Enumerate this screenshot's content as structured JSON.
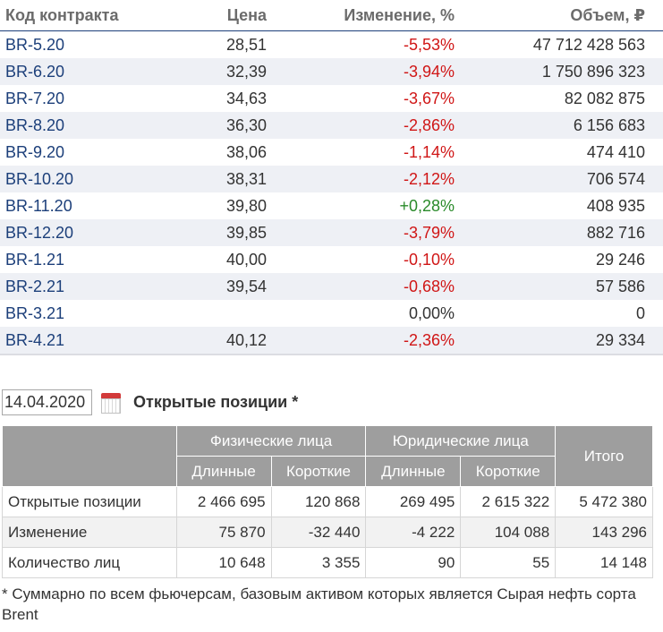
{
  "contracts": {
    "headers": {
      "code": "Код контракта",
      "price": "Цена",
      "change": "Изменение, %",
      "volume": "Объем, ₽"
    },
    "rows": [
      {
        "code": "BR-5.20",
        "price": "28,51",
        "change": "-5,53%",
        "volume": "47 712 428 563"
      },
      {
        "code": "BR-6.20",
        "price": "32,39",
        "change": "-3,94%",
        "volume": "1 750 896 323"
      },
      {
        "code": "BR-7.20",
        "price": "34,63",
        "change": "-3,67%",
        "volume": "82 082 875"
      },
      {
        "code": "BR-8.20",
        "price": "36,30",
        "change": "-2,86%",
        "volume": "6 156 683"
      },
      {
        "code": "BR-9.20",
        "price": "38,06",
        "change": "-1,14%",
        "volume": "474 410"
      },
      {
        "code": "BR-10.20",
        "price": "38,31",
        "change": "-2,12%",
        "volume": "706 574"
      },
      {
        "code": "BR-11.20",
        "price": "39,80",
        "change": "+0,28%",
        "volume": "408 935"
      },
      {
        "code": "BR-12.20",
        "price": "39,85",
        "change": "-3,79%",
        "volume": "882 716"
      },
      {
        "code": "BR-1.21",
        "price": "40,00",
        "change": "-0,10%",
        "volume": "29 246"
      },
      {
        "code": "BR-2.21",
        "price": "39,54",
        "change": "-0,68%",
        "volume": "57 586"
      },
      {
        "code": "BR-3.21",
        "price": "",
        "change": "0,00%",
        "volume": "0"
      },
      {
        "code": "BR-4.21",
        "price": "40,12",
        "change": "-2,36%",
        "volume": "29 334"
      }
    ]
  },
  "date_picker": {
    "value": "14.04.2020",
    "icon": "calendar-icon"
  },
  "open_interest": {
    "title": "Открытые позиции *",
    "group_headers": {
      "individuals": "Физические лица",
      "legal": "Юридические лица",
      "total": "Итого"
    },
    "sub_headers": {
      "long": "Длинные",
      "short": "Короткие"
    },
    "rows": [
      {
        "label": "Открытые позиции",
        "ind_long": "2 466 695",
        "ind_short": "120 868",
        "leg_long": "269 495",
        "leg_short": "2 615 322",
        "total": "5 472 380"
      },
      {
        "label": "Изменение",
        "ind_long": "75 870",
        "ind_short": "-32 440",
        "leg_long": "-4 222",
        "leg_short": "104 088",
        "total": "143 296"
      },
      {
        "label": "Количество лиц",
        "ind_long": "10 648",
        "ind_short": "3 355",
        "leg_long": "90",
        "leg_short": "55",
        "total": "14 148"
      }
    ]
  },
  "footnote": "* Суммарно по всем фьючерсам, базовым активом которых является Сырая нефть сорта Brent",
  "colors": {
    "link": "#1c3f7a",
    "negative": "#d01616",
    "positive": "#2a8a2a",
    "header_bg": "#9e9e9e",
    "stripe": "#eef0f5"
  }
}
